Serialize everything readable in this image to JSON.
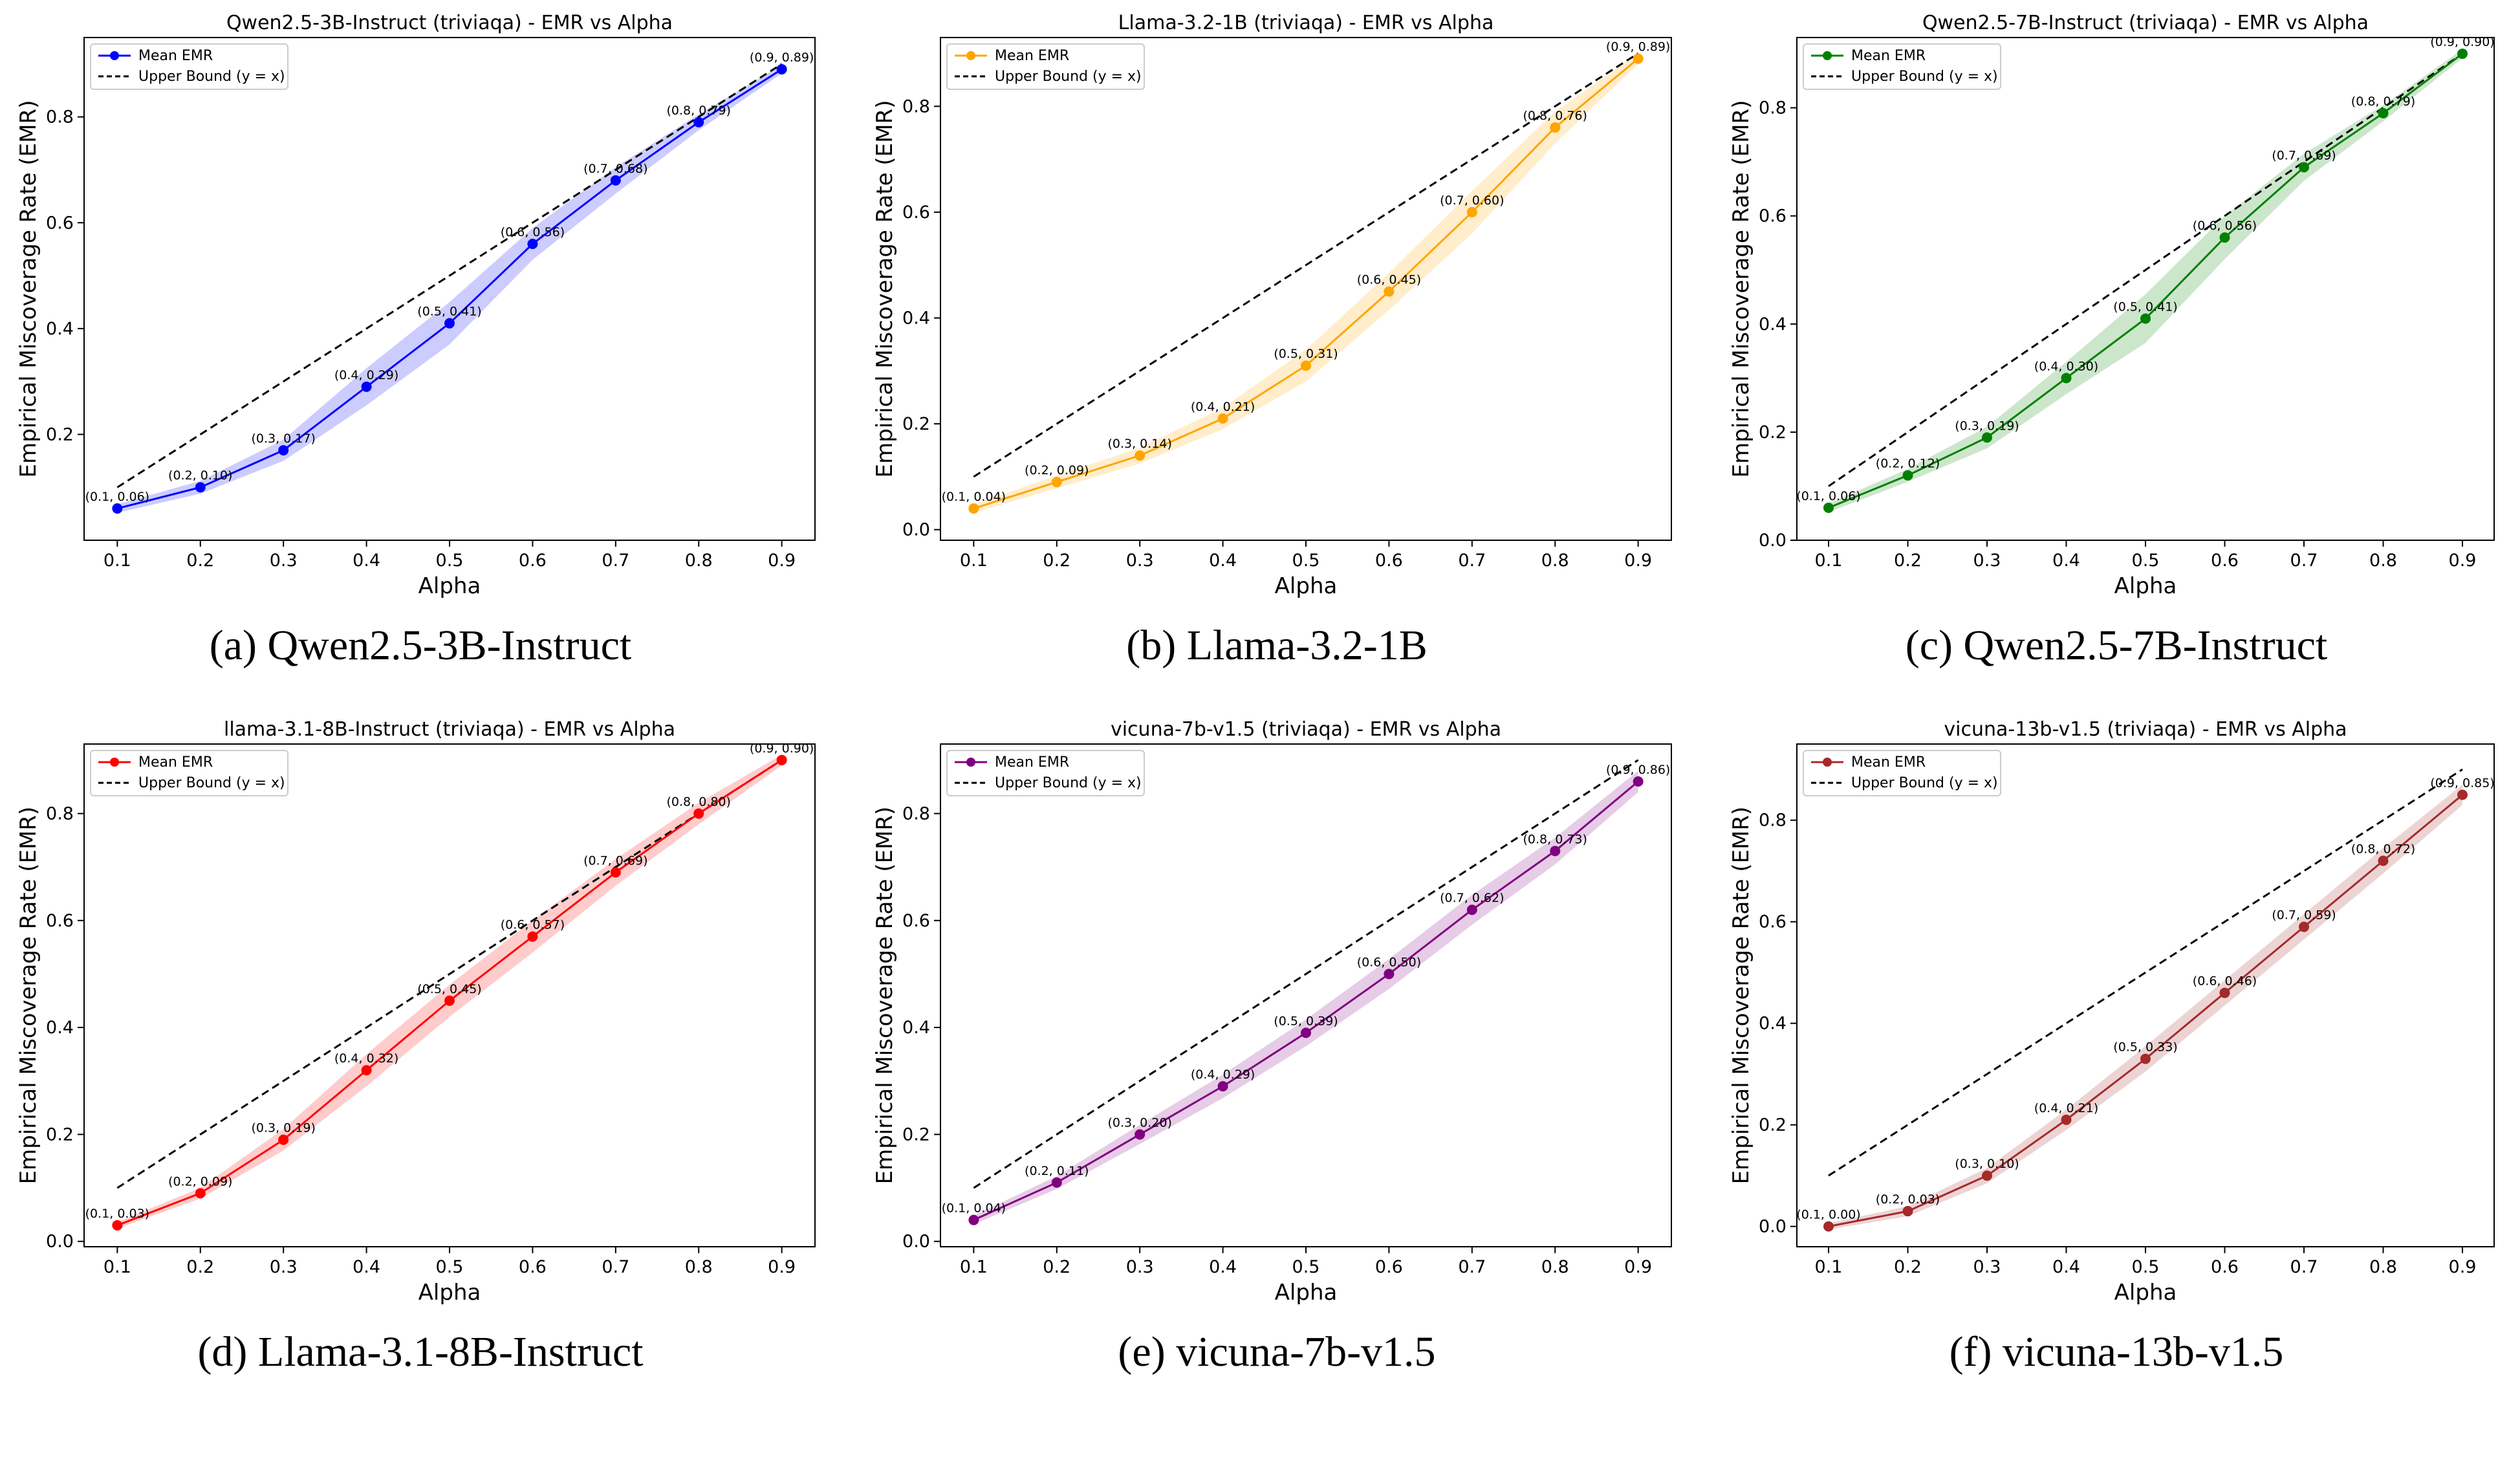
{
  "legend": {
    "mean_label": "Mean EMR",
    "bound_label": "Upper Bound (y = x)"
  },
  "chart_data": [
    {
      "type": "line",
      "title": "Qwen2.5-3B-Instruct (triviaqa) - EMR vs Alpha",
      "caption": "(a)  Qwen2.5-3B-Instruct",
      "xlabel": "Alpha",
      "ylabel": "Empirical Miscoverage Rate (EMR)",
      "xlim": [
        0.06,
        0.94
      ],
      "ylim": [
        0.0,
        0.95
      ],
      "color": "#0000ff",
      "x": [
        0.1,
        0.2,
        0.3,
        0.4,
        0.5,
        0.6,
        0.7,
        0.8,
        0.9
      ],
      "y": [
        0.06,
        0.1,
        0.17,
        0.29,
        0.41,
        0.56,
        0.68,
        0.79,
        0.89
      ],
      "point_labels": [
        "(0.1, 0.06)",
        "(0.2, 0.10)",
        "(0.3, 0.17)",
        "(0.4, 0.29)",
        "(0.5, 0.41)",
        "(0.6, 0.56)",
        "(0.7, 0.68)",
        "(0.8, 0.79)",
        "(0.9, 0.89)"
      ],
      "band": [
        0.008,
        0.012,
        0.02,
        0.035,
        0.04,
        0.03,
        0.025,
        0.015,
        0.008
      ],
      "yticks": [
        0.2,
        0.4,
        0.6,
        0.8
      ],
      "xticks": [
        0.1,
        0.2,
        0.3,
        0.4,
        0.5,
        0.6,
        0.7,
        0.8,
        0.9
      ],
      "legend_position": "upper-left",
      "grid": false
    },
    {
      "type": "line",
      "title": "Llama-3.2-1B (triviaqa) - EMR vs Alpha",
      "caption": "(b)  Llama-3.2-1B",
      "xlabel": "Alpha",
      "ylabel": "Empirical Miscoverage Rate (EMR)",
      "xlim": [
        0.06,
        0.94
      ],
      "ylim": [
        -0.02,
        0.93
      ],
      "color": "#ffa500",
      "x": [
        0.1,
        0.2,
        0.3,
        0.4,
        0.5,
        0.6,
        0.7,
        0.8,
        0.9
      ],
      "y": [
        0.04,
        0.09,
        0.14,
        0.21,
        0.31,
        0.45,
        0.6,
        0.76,
        0.89
      ],
      "point_labels": [
        "(0.1, 0.04)",
        "(0.2, 0.09)",
        "(0.3, 0.14)",
        "(0.4, 0.21)",
        "(0.5, 0.31)",
        "(0.6, 0.45)",
        "(0.7, 0.60)",
        "(0.8, 0.76)",
        "(0.9, 0.89)"
      ],
      "band": [
        0.008,
        0.012,
        0.015,
        0.02,
        0.03,
        0.035,
        0.04,
        0.03,
        0.01
      ],
      "yticks": [
        0.0,
        0.2,
        0.4,
        0.6,
        0.8
      ],
      "xticks": [
        0.1,
        0.2,
        0.3,
        0.4,
        0.5,
        0.6,
        0.7,
        0.8,
        0.9
      ],
      "legend_position": "upper-left",
      "grid": false
    },
    {
      "type": "line",
      "title": "Qwen2.5-7B-Instruct (triviaqa) - EMR vs Alpha",
      "caption": "(c)  Qwen2.5-7B-Instruct",
      "xlabel": "Alpha",
      "ylabel": "Empirical Miscoverage Rate (EMR)",
      "xlim": [
        0.06,
        0.94
      ],
      "ylim": [
        0.0,
        0.93
      ],
      "color": "#008000",
      "x": [
        0.1,
        0.2,
        0.3,
        0.4,
        0.5,
        0.6,
        0.7,
        0.8,
        0.9
      ],
      "y": [
        0.06,
        0.12,
        0.19,
        0.3,
        0.41,
        0.56,
        0.69,
        0.79,
        0.9
      ],
      "point_labels": [
        "(0.1, 0.06)",
        "(0.2, 0.12)",
        "(0.3, 0.19)",
        "(0.4, 0.30)",
        "(0.5, 0.41)",
        "(0.6, 0.56)",
        "(0.7, 0.69)",
        "(0.8, 0.79)",
        "(0.9, 0.90)"
      ],
      "band": [
        0.008,
        0.012,
        0.02,
        0.03,
        0.045,
        0.04,
        0.025,
        0.015,
        0.008
      ],
      "yticks": [
        0.0,
        0.2,
        0.4,
        0.6,
        0.8
      ],
      "xticks": [
        0.1,
        0.2,
        0.3,
        0.4,
        0.5,
        0.6,
        0.7,
        0.8,
        0.9
      ],
      "legend_position": "upper-left",
      "grid": false
    },
    {
      "type": "line",
      "title": "llama-3.1-8B-Instruct (triviaqa) - EMR vs Alpha",
      "caption": "(d)  Llama-3.1-8B-Instruct",
      "xlabel": "Alpha",
      "ylabel": "Empirical Miscoverage Rate (EMR)",
      "xlim": [
        0.06,
        0.94
      ],
      "ylim": [
        -0.01,
        0.93
      ],
      "color": "#ff0000",
      "x": [
        0.1,
        0.2,
        0.3,
        0.4,
        0.5,
        0.6,
        0.7,
        0.8,
        0.9
      ],
      "y": [
        0.03,
        0.09,
        0.19,
        0.32,
        0.45,
        0.57,
        0.69,
        0.8,
        0.9
      ],
      "point_labels": [
        "(0.1, 0.03)",
        "(0.2, 0.09)",
        "(0.3, 0.19)",
        "(0.4, 0.32)",
        "(0.5, 0.45)",
        "(0.6, 0.57)",
        "(0.7, 0.69)",
        "(0.8, 0.80)",
        "(0.9, 0.90)"
      ],
      "band": [
        0.006,
        0.01,
        0.02,
        0.03,
        0.03,
        0.03,
        0.025,
        0.02,
        0.01
      ],
      "yticks": [
        0.0,
        0.2,
        0.4,
        0.6,
        0.8
      ],
      "xticks": [
        0.1,
        0.2,
        0.3,
        0.4,
        0.5,
        0.6,
        0.7,
        0.8,
        0.9
      ],
      "legend_position": "upper-left",
      "grid": false
    },
    {
      "type": "line",
      "title": "vicuna-7b-v1.5 (triviaqa) - EMR vs Alpha",
      "caption": "(e)  vicuna-7b-v1.5",
      "xlabel": "Alpha",
      "ylabel": "Empirical Miscoverage Rate (EMR)",
      "xlim": [
        0.06,
        0.94
      ],
      "ylim": [
        -0.01,
        0.93
      ],
      "color": "#800080",
      "x": [
        0.1,
        0.2,
        0.3,
        0.4,
        0.5,
        0.6,
        0.7,
        0.8,
        0.9
      ],
      "y": [
        0.04,
        0.11,
        0.2,
        0.29,
        0.39,
        0.5,
        0.62,
        0.73,
        0.86
      ],
      "point_labels": [
        "(0.1, 0.04)",
        "(0.2, 0.11)",
        "(0.3, 0.20)",
        "(0.4, 0.29)",
        "(0.5, 0.39)",
        "(0.6, 0.50)",
        "(0.7, 0.62)",
        "(0.8, 0.73)",
        "(0.9, 0.86)"
      ],
      "band": [
        0.008,
        0.012,
        0.018,
        0.022,
        0.025,
        0.028,
        0.028,
        0.025,
        0.02
      ],
      "yticks": [
        0.0,
        0.2,
        0.4,
        0.6,
        0.8
      ],
      "xticks": [
        0.1,
        0.2,
        0.3,
        0.4,
        0.5,
        0.6,
        0.7,
        0.8,
        0.9
      ],
      "legend_position": "upper-left",
      "grid": false
    },
    {
      "type": "line",
      "title": "vicuna-13b-v1.5 (triviaqa) - EMR vs Alpha",
      "caption": "(f)  vicuna-13b-v1.5",
      "xlabel": "Alpha",
      "ylabel": "Empirical Miscoverage Rate (EMR)",
      "xlim": [
        0.06,
        0.94
      ],
      "ylim": [
        -0.04,
        0.95
      ],
      "color": "#a52a2a",
      "x": [
        0.1,
        0.2,
        0.3,
        0.4,
        0.5,
        0.6,
        0.7,
        0.8,
        0.9
      ],
      "y": [
        0.0,
        0.03,
        0.1,
        0.21,
        0.33,
        0.46,
        0.59,
        0.72,
        0.85
      ],
      "point_labels": [
        "(0.1, 0.00)",
        "(0.2, 0.03)",
        "(0.3, 0.10)",
        "(0.4, 0.21)",
        "(0.5, 0.33)",
        "(0.6, 0.46)",
        "(0.7, 0.59)",
        "(0.8, 0.72)",
        "(0.9, 0.85)"
      ],
      "band": [
        0.006,
        0.01,
        0.015,
        0.02,
        0.025,
        0.025,
        0.025,
        0.025,
        0.02
      ],
      "yticks": [
        0.0,
        0.2,
        0.4,
        0.6,
        0.8
      ],
      "xticks": [
        0.1,
        0.2,
        0.3,
        0.4,
        0.5,
        0.6,
        0.7,
        0.8,
        0.9
      ],
      "legend_position": "upper-left",
      "grid": false
    }
  ]
}
